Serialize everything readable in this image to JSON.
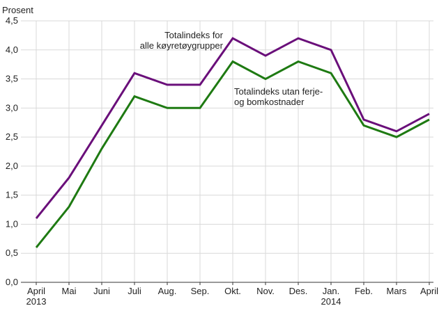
{
  "chart_data": {
    "type": "line",
    "title": "",
    "xlabel": "",
    "ylabel": "Prosent",
    "ylim": [
      0,
      4.5
    ],
    "yticks": [
      "0,0",
      "0,5",
      "1,0",
      "1,5",
      "2,0",
      "2,5",
      "3,0",
      "3,5",
      "4,0",
      "4,5"
    ],
    "categories": [
      "April",
      "Mai",
      "Juni",
      "Juli",
      "Aug.",
      "Sep.",
      "Okt.",
      "Nov.",
      "Des.",
      "Jan.",
      "Feb.",
      "Mars",
      "April"
    ],
    "category_sublabels": [
      "2013",
      "",
      "",
      "",
      "",
      "",
      "",
      "",
      "",
      "2014",
      "",
      "",
      ""
    ],
    "grid": true,
    "legend": "none",
    "series": [
      {
        "name": "Totalindeks for alle køyretøygrupper",
        "color": "#6a0f7a",
        "values": [
          1.1,
          1.8,
          2.7,
          3.6,
          3.4,
          3.4,
          4.2,
          3.9,
          4.2,
          4.0,
          2.8,
          2.6,
          2.9
        ]
      },
      {
        "name": "Totalindeks utan ferje- og bomkostnader",
        "color": "#1e7a12",
        "values": [
          0.6,
          1.3,
          2.3,
          3.2,
          3.0,
          3.0,
          3.8,
          3.5,
          3.8,
          3.6,
          2.7,
          2.5,
          2.8
        ]
      }
    ],
    "annotations": [
      {
        "lines": [
          "Totalindeks for",
          "alle køyretøygrupper"
        ]
      },
      {
        "lines": [
          "Totalindeks utan ferje-",
          "og bomkostnader"
        ]
      }
    ]
  }
}
